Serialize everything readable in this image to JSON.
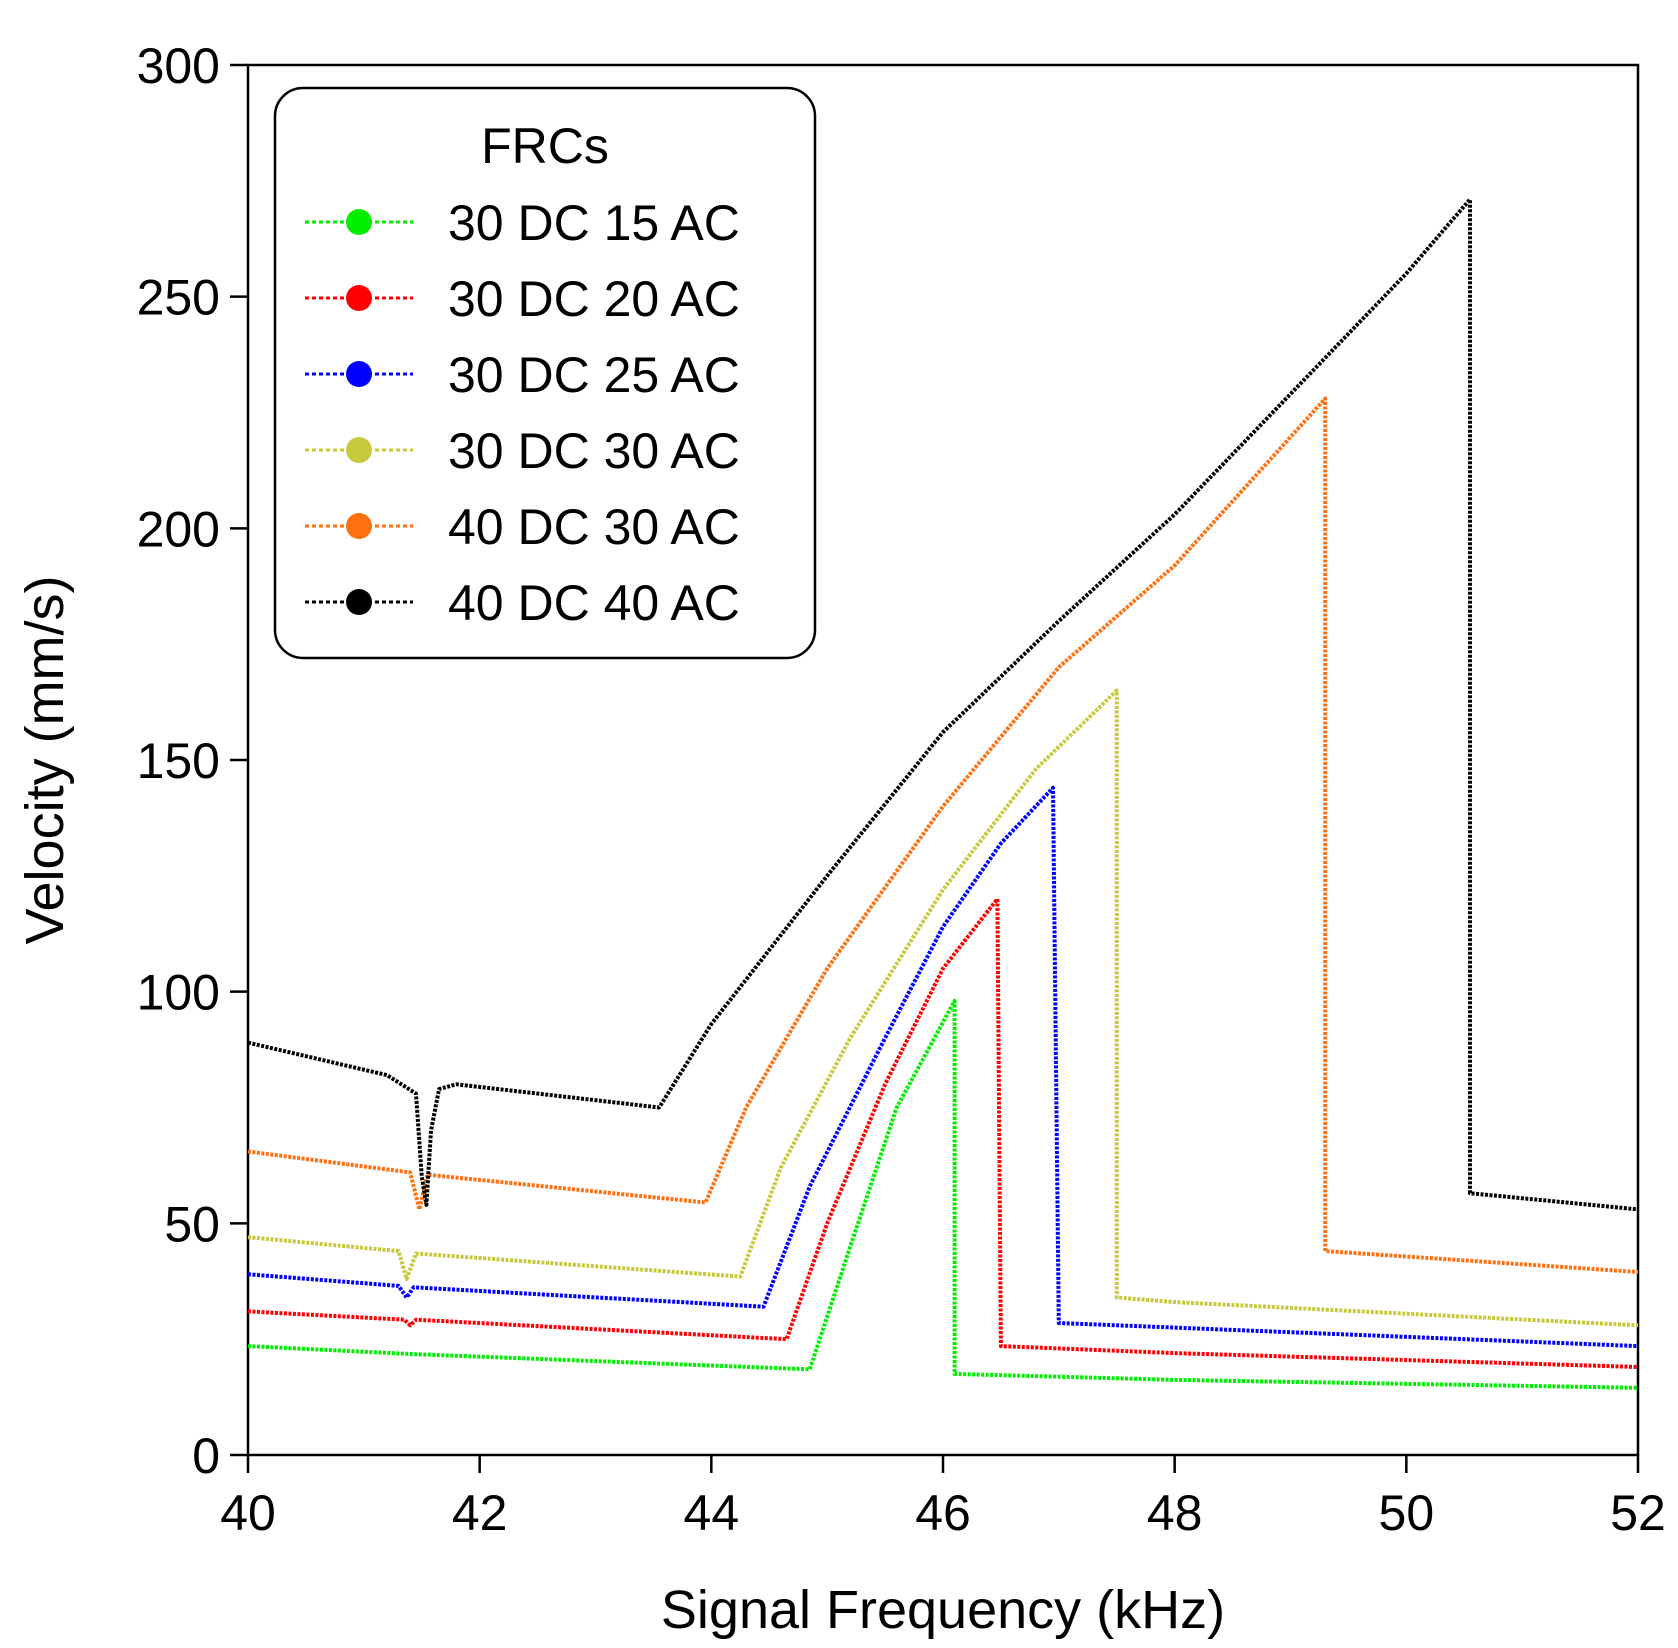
{
  "chart_data": {
    "type": "line",
    "xlabel": "Signal Frequency (kHz)",
    "ylabel": "Velocity (mm/s)",
    "xlim": [
      40,
      52
    ],
    "ylim": [
      0,
      300
    ],
    "xticks": [
      "40",
      "42",
      "44",
      "46",
      "48",
      "50",
      "52"
    ],
    "yticks": [
      "0",
      "50",
      "100",
      "150",
      "200",
      "250",
      "300"
    ],
    "legend": {
      "title": "FRCs",
      "placement": "top-left"
    },
    "series": [
      {
        "name": "30 DC 15 AC",
        "color": "#00ee00",
        "points": [
          [
            40.0,
            23.5
          ],
          [
            41.4,
            21.8
          ],
          [
            44.85,
            18.5
          ],
          [
            45.2,
            45
          ],
          [
            45.6,
            75
          ],
          [
            46.1,
            98
          ],
          [
            46.1,
            17.5
          ],
          [
            48.0,
            16.2
          ],
          [
            52.0,
            14.5
          ]
        ]
      },
      {
        "name": "30 DC 20 AC",
        "color": "#ff0000",
        "points": [
          [
            40.0,
            31
          ],
          [
            41.35,
            29.2
          ],
          [
            41.4,
            28
          ],
          [
            41.45,
            29.2
          ],
          [
            44.65,
            25
          ],
          [
            45.0,
            50
          ],
          [
            45.5,
            80
          ],
          [
            46.0,
            105
          ],
          [
            46.47,
            120
          ],
          [
            46.5,
            23.5
          ],
          [
            48.0,
            22
          ],
          [
            52.0,
            19
          ]
        ]
      },
      {
        "name": "30 DC 25 AC",
        "color": "#0000ff",
        "points": [
          [
            40.0,
            39
          ],
          [
            41.3,
            36.5
          ],
          [
            41.37,
            34
          ],
          [
            41.43,
            36.2
          ],
          [
            44.45,
            32
          ],
          [
            44.85,
            58
          ],
          [
            45.5,
            90
          ],
          [
            46.0,
            114
          ],
          [
            46.5,
            132
          ],
          [
            46.95,
            144
          ],
          [
            47.0,
            28.5
          ],
          [
            48.0,
            27.5
          ],
          [
            52.0,
            23.5
          ]
        ]
      },
      {
        "name": "30 DC 30 AC",
        "color": "#c8c83c",
        "points": [
          [
            40.0,
            47
          ],
          [
            41.3,
            44
          ],
          [
            41.37,
            38
          ],
          [
            41.45,
            43.5
          ],
          [
            44.25,
            38.5
          ],
          [
            44.6,
            62
          ],
          [
            45.2,
            90
          ],
          [
            46.0,
            122
          ],
          [
            46.8,
            148
          ],
          [
            47.5,
            165
          ],
          [
            47.5,
            34
          ],
          [
            48.0,
            33
          ],
          [
            52.0,
            28
          ]
        ]
      },
      {
        "name": "40 DC 30 AC",
        "color": "#ff7010",
        "points": [
          [
            40.0,
            65.5
          ],
          [
            41.4,
            61
          ],
          [
            41.48,
            53
          ],
          [
            41.55,
            60.5
          ],
          [
            43.95,
            54.5
          ],
          [
            44.3,
            75
          ],
          [
            45.0,
            105
          ],
          [
            46.0,
            140
          ],
          [
            47.0,
            170
          ],
          [
            48.0,
            192
          ],
          [
            49.3,
            228
          ],
          [
            49.3,
            44
          ],
          [
            52.0,
            39.5
          ]
        ]
      },
      {
        "name": "40 DC 40 AC",
        "color": "#000000",
        "points": [
          [
            40.0,
            89
          ],
          [
            41.2,
            82
          ],
          [
            41.45,
            78
          ],
          [
            41.5,
            60
          ],
          [
            41.54,
            54
          ],
          [
            41.58,
            70
          ],
          [
            41.65,
            79
          ],
          [
            41.8,
            80
          ],
          [
            43.55,
            75
          ],
          [
            44.0,
            93
          ],
          [
            45.0,
            125
          ],
          [
            46.0,
            156
          ],
          [
            47.0,
            180
          ],
          [
            48.0,
            203
          ],
          [
            49.0,
            229
          ],
          [
            50.0,
            255
          ],
          [
            50.55,
            271
          ],
          [
            50.55,
            56.5
          ],
          [
            52.0,
            53
          ]
        ]
      }
    ]
  }
}
